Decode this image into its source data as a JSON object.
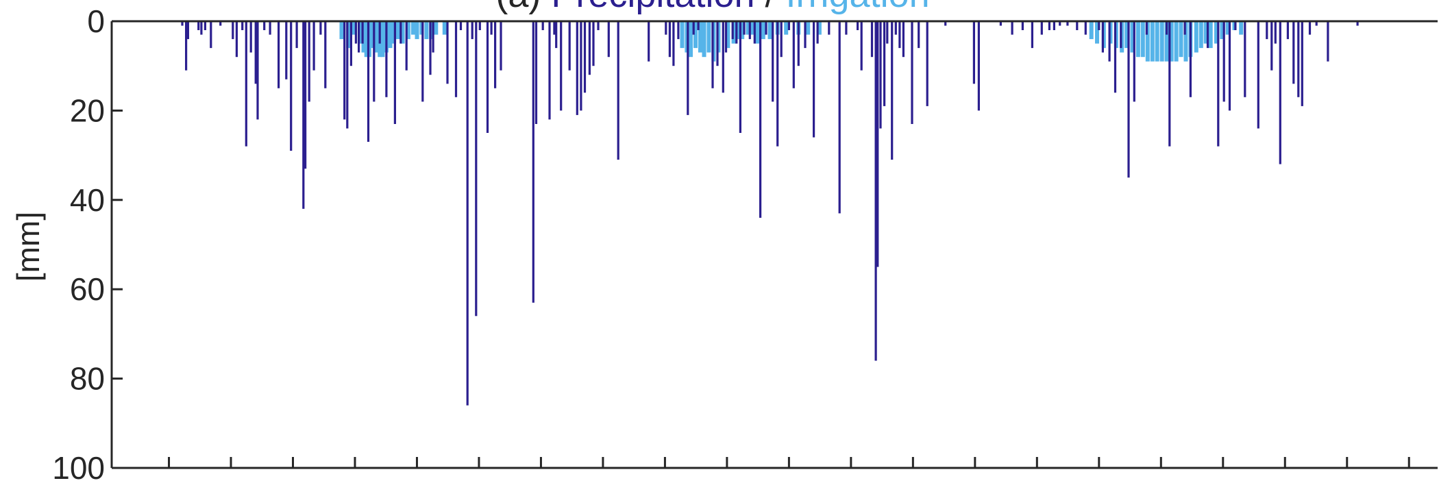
{
  "chart_data": {
    "type": "bar",
    "title_parts": [
      {
        "text": "(a) ",
        "color": "#262626"
      },
      {
        "text": "Precipitation",
        "color": "#2b1f8f"
      },
      {
        "text": " / ",
        "color": "#262626"
      },
      {
        "text": "Irrigation",
        "color": "#56b4e9"
      }
    ],
    "ylabel": "[mm]",
    "xlabel": "",
    "ylim": [
      0,
      100
    ],
    "y_inverted": true,
    "yticks": [
      0,
      20,
      40,
      60,
      80,
      100
    ],
    "x_range": [
      0,
      1390
    ],
    "xticks": [
      60,
      125,
      190,
      255,
      320,
      385,
      450,
      515,
      580,
      645,
      710,
      775,
      840,
      905,
      970,
      1035,
      1100,
      1165,
      1230,
      1295,
      1360
    ],
    "grid": false,
    "series": [
      {
        "name": "Precipitation",
        "color": "#2b1f8f",
        "points": [
          [
            74,
            1
          ],
          [
            78,
            11
          ],
          [
            80,
            4
          ],
          [
            91,
            2
          ],
          [
            94,
            3
          ],
          [
            98,
            2
          ],
          [
            104,
            6
          ],
          [
            114,
            1
          ],
          [
            127,
            4
          ],
          [
            131,
            8
          ],
          [
            137,
            2
          ],
          [
            141,
            28
          ],
          [
            146,
            7
          ],
          [
            151,
            14
          ],
          [
            153,
            22
          ],
          [
            160,
            2
          ],
          [
            166,
            3
          ],
          [
            175,
            15
          ],
          [
            183,
            13
          ],
          [
            188,
            29
          ],
          [
            194,
            6
          ],
          [
            201,
            42
          ],
          [
            203,
            33
          ],
          [
            207,
            18
          ],
          [
            212,
            11
          ],
          [
            219,
            3
          ],
          [
            224,
            15
          ],
          [
            244,
            22
          ],
          [
            247,
            24
          ],
          [
            251,
            10
          ],
          [
            256,
            5
          ],
          [
            259,
            7
          ],
          [
            263,
            5
          ],
          [
            269,
            27
          ],
          [
            275,
            18
          ],
          [
            281,
            5
          ],
          [
            288,
            17
          ],
          [
            297,
            23
          ],
          [
            303,
            5
          ],
          [
            309,
            11
          ],
          [
            326,
            18
          ],
          [
            334,
            12
          ],
          [
            337,
            7
          ],
          [
            352,
            14
          ],
          [
            361,
            17
          ],
          [
            366,
            2
          ],
          [
            373,
            86
          ],
          [
            378,
            4
          ],
          [
            382,
            66
          ],
          [
            386,
            2
          ],
          [
            394,
            25
          ],
          [
            398,
            3
          ],
          [
            402,
            15
          ],
          [
            408,
            11
          ],
          [
            442,
            63
          ],
          [
            445,
            23
          ],
          [
            452,
            2
          ],
          [
            459,
            22
          ],
          [
            464,
            3
          ],
          [
            466,
            6
          ],
          [
            471,
            20
          ],
          [
            480,
            11
          ],
          [
            488,
            21
          ],
          [
            492,
            20
          ],
          [
            496,
            16
          ],
          [
            501,
            12
          ],
          [
            505,
            10
          ],
          [
            510,
            2
          ],
          [
            521,
            8
          ],
          [
            531,
            31
          ],
          [
            563,
            9
          ],
          [
            581,
            3
          ],
          [
            585,
            8
          ],
          [
            589,
            10
          ],
          [
            594,
            4
          ],
          [
            604,
            21
          ],
          [
            610,
            3
          ],
          [
            615,
            2
          ],
          [
            630,
            15
          ],
          [
            635,
            10
          ],
          [
            641,
            16
          ],
          [
            644,
            7
          ],
          [
            651,
            4
          ],
          [
            655,
            5
          ],
          [
            659,
            25
          ],
          [
            663,
            3
          ],
          [
            669,
            4
          ],
          [
            674,
            5
          ],
          [
            680,
            44
          ],
          [
            686,
            3
          ],
          [
            693,
            18
          ],
          [
            698,
            28
          ],
          [
            702,
            8
          ],
          [
            710,
            2
          ],
          [
            715,
            15
          ],
          [
            720,
            10
          ],
          [
            727,
            6
          ],
          [
            736,
            26
          ],
          [
            740,
            5
          ],
          [
            752,
            3
          ],
          [
            763,
            43
          ],
          [
            770,
            3
          ],
          [
            782,
            2
          ],
          [
            786,
            11
          ],
          [
            797,
            8
          ],
          [
            801,
            76
          ],
          [
            803,
            55
          ],
          [
            806,
            24
          ],
          [
            810,
            19
          ],
          [
            813,
            5
          ],
          [
            818,
            31
          ],
          [
            822,
            3
          ],
          [
            826,
            6
          ],
          [
            830,
            8
          ],
          [
            839,
            23
          ],
          [
            846,
            6
          ],
          [
            855,
            19
          ],
          [
            874,
            1
          ],
          [
            904,
            14
          ],
          [
            909,
            20
          ],
          [
            932,
            1
          ],
          [
            944,
            3
          ],
          [
            955,
            2
          ],
          [
            965,
            6
          ],
          [
            975,
            3
          ],
          [
            983,
            2
          ],
          [
            988,
            2
          ],
          [
            994,
            1
          ],
          [
            1002,
            1
          ],
          [
            1012,
            2
          ],
          [
            1021,
            3
          ],
          [
            1035,
            2
          ],
          [
            1039,
            7
          ],
          [
            1046,
            9
          ],
          [
            1052,
            16
          ],
          [
            1058,
            6
          ],
          [
            1066,
            35
          ],
          [
            1072,
            18
          ],
          [
            1085,
            3
          ],
          [
            1106,
            3
          ],
          [
            1109,
            28
          ],
          [
            1125,
            3
          ],
          [
            1131,
            17
          ],
          [
            1149,
            6
          ],
          [
            1160,
            28
          ],
          [
            1166,
            18
          ],
          [
            1172,
            20
          ],
          [
            1178,
            2
          ],
          [
            1188,
            17
          ],
          [
            1202,
            24
          ],
          [
            1211,
            4
          ],
          [
            1216,
            11
          ],
          [
            1220,
            5
          ],
          [
            1225,
            32
          ],
          [
            1233,
            4
          ],
          [
            1239,
            14
          ],
          [
            1244,
            17
          ],
          [
            1248,
            19
          ],
          [
            1256,
            3
          ],
          [
            1263,
            1
          ],
          [
            1275,
            9
          ],
          [
            1306,
            1
          ]
        ]
      },
      {
        "name": "Irrigation",
        "color": "#56b4e9",
        "points": [
          [
            241,
            4
          ],
          [
            248,
            6
          ],
          [
            254,
            3
          ],
          [
            260,
            5
          ],
          [
            264,
            7
          ],
          [
            267,
            8
          ],
          [
            270,
            8
          ],
          [
            274,
            6
          ],
          [
            278,
            7
          ],
          [
            281,
            8
          ],
          [
            284,
            8
          ],
          [
            288,
            7
          ],
          [
            292,
            6
          ],
          [
            296,
            5
          ],
          [
            300,
            4
          ],
          [
            305,
            5
          ],
          [
            311,
            4
          ],
          [
            316,
            3
          ],
          [
            320,
            4
          ],
          [
            325,
            3
          ],
          [
            330,
            4
          ],
          [
            335,
            4
          ],
          [
            340,
            3
          ],
          [
            349,
            3
          ],
          [
            598,
            6
          ],
          [
            603,
            7
          ],
          [
            607,
            8
          ],
          [
            612,
            6
          ],
          [
            617,
            7
          ],
          [
            621,
            8
          ],
          [
            626,
            7
          ],
          [
            631,
            9
          ],
          [
            636,
            7
          ],
          [
            646,
            6
          ],
          [
            652,
            5
          ],
          [
            657,
            4
          ],
          [
            661,
            4
          ],
          [
            667,
            3
          ],
          [
            672,
            3
          ],
          [
            677,
            5
          ],
          [
            683,
            4
          ],
          [
            690,
            4
          ],
          [
            698,
            3
          ],
          [
            707,
            3
          ],
          [
            720,
            3
          ],
          [
            730,
            3
          ],
          [
            742,
            3
          ],
          [
            1027,
            4
          ],
          [
            1033,
            5
          ],
          [
            1040,
            6
          ],
          [
            1047,
            5
          ],
          [
            1053,
            6
          ],
          [
            1059,
            7
          ],
          [
            1064,
            6
          ],
          [
            1070,
            7
          ],
          [
            1076,
            8
          ],
          [
            1081,
            8
          ],
          [
            1086,
            9
          ],
          [
            1091,
            9
          ],
          [
            1096,
            9
          ],
          [
            1101,
            9
          ],
          [
            1106,
            9
          ],
          [
            1111,
            9
          ],
          [
            1116,
            9
          ],
          [
            1121,
            8
          ],
          [
            1126,
            9
          ],
          [
            1131,
            8
          ],
          [
            1137,
            7
          ],
          [
            1142,
            6
          ],
          [
            1147,
            5
          ],
          [
            1152,
            6
          ],
          [
            1158,
            5
          ],
          [
            1164,
            4
          ],
          [
            1170,
            3
          ],
          [
            1177,
            2
          ],
          [
            1184,
            3
          ]
        ]
      }
    ]
  }
}
